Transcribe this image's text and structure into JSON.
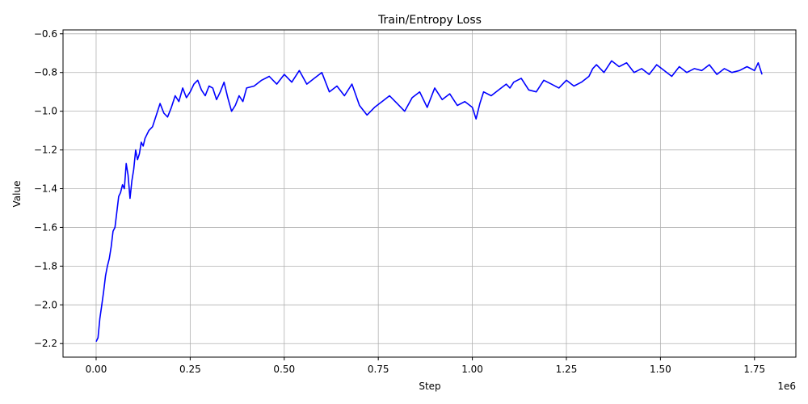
{
  "chart_data": {
    "type": "line",
    "title": "Train/Entropy Loss",
    "xlabel": "Step",
    "ylabel": "Value",
    "x_offset_label": "1e6",
    "xlim": [
      -0.088,
      1.86
    ],
    "ylim": [
      -2.27,
      -0.58
    ],
    "x_ticks": [
      0.0,
      0.25,
      0.5,
      0.75,
      1.0,
      1.25,
      1.5,
      1.75
    ],
    "x_tick_labels": [
      "0.00",
      "0.25",
      "0.50",
      "0.75",
      "1.00",
      "1.25",
      "1.50",
      "1.75"
    ],
    "y_ticks": [
      -2.2,
      -2.0,
      -1.8,
      -1.6,
      -1.4,
      -1.2,
      -1.0,
      -0.8,
      -0.6
    ],
    "y_tick_labels": [
      "−2.2",
      "−2.0",
      "−1.8",
      "−1.6",
      "−1.4",
      "−1.2",
      "−1.0",
      "−0.8",
      "−0.6"
    ],
    "grid": true,
    "line_color": "#0000ff",
    "series": [
      {
        "x": [
          0.0,
          0.005,
          0.01,
          0.015,
          0.02,
          0.025,
          0.03,
          0.035,
          0.04,
          0.045,
          0.05,
          0.055,
          0.06,
          0.065,
          0.07,
          0.075,
          0.08,
          0.085,
          0.09,
          0.095,
          0.1,
          0.105,
          0.11,
          0.115,
          0.12,
          0.125,
          0.13,
          0.14,
          0.15,
          0.16,
          0.17,
          0.18,
          0.19,
          0.2,
          0.21,
          0.22,
          0.23,
          0.24,
          0.25,
          0.26,
          0.27,
          0.28,
          0.29,
          0.3,
          0.31,
          0.32,
          0.33,
          0.34,
          0.35,
          0.36,
          0.37,
          0.38,
          0.39,
          0.4,
          0.42,
          0.44,
          0.46,
          0.48,
          0.5,
          0.52,
          0.54,
          0.56,
          0.58,
          0.6,
          0.62,
          0.64,
          0.66,
          0.68,
          0.7,
          0.72,
          0.74,
          0.76,
          0.78,
          0.8,
          0.82,
          0.84,
          0.86,
          0.88,
          0.9,
          0.92,
          0.94,
          0.96,
          0.98,
          1.0,
          1.01,
          1.02,
          1.03,
          1.05,
          1.07,
          1.09,
          1.1,
          1.11,
          1.13,
          1.15,
          1.17,
          1.19,
          1.21,
          1.23,
          1.25,
          1.27,
          1.29,
          1.31,
          1.32,
          1.33,
          1.35,
          1.37,
          1.39,
          1.41,
          1.43,
          1.45,
          1.47,
          1.49,
          1.51,
          1.53,
          1.55,
          1.57,
          1.59,
          1.61,
          1.63,
          1.65,
          1.67,
          1.69,
          1.71,
          1.73,
          1.75,
          1.76,
          1.77
        ],
        "values": [
          -2.19,
          -2.17,
          -2.07,
          -2.0,
          -1.93,
          -1.85,
          -1.8,
          -1.76,
          -1.7,
          -1.62,
          -1.6,
          -1.52,
          -1.44,
          -1.42,
          -1.38,
          -1.4,
          -1.27,
          -1.33,
          -1.45,
          -1.36,
          -1.3,
          -1.2,
          -1.25,
          -1.22,
          -1.16,
          -1.18,
          -1.14,
          -1.1,
          -1.08,
          -1.02,
          -0.96,
          -1.01,
          -1.03,
          -0.98,
          -0.92,
          -0.95,
          -0.88,
          -0.93,
          -0.9,
          -0.86,
          -0.84,
          -0.89,
          -0.92,
          -0.87,
          -0.88,
          -0.94,
          -0.9,
          -0.85,
          -0.93,
          -1.0,
          -0.97,
          -0.92,
          -0.95,
          -0.88,
          -0.87,
          -0.84,
          -0.82,
          -0.86,
          -0.81,
          -0.85,
          -0.79,
          -0.86,
          -0.83,
          -0.8,
          -0.9,
          -0.87,
          -0.92,
          -0.86,
          -0.97,
          -1.02,
          -0.98,
          -0.95,
          -0.92,
          -0.96,
          -1.0,
          -0.93,
          -0.9,
          -0.98,
          -0.88,
          -0.94,
          -0.91,
          -0.97,
          -0.95,
          -0.98,
          -1.04,
          -0.96,
          -0.9,
          -0.92,
          -0.89,
          -0.86,
          -0.88,
          -0.85,
          -0.83,
          -0.89,
          -0.9,
          -0.84,
          -0.86,
          -0.88,
          -0.84,
          -0.87,
          -0.85,
          -0.82,
          -0.78,
          -0.76,
          -0.8,
          -0.74,
          -0.77,
          -0.75,
          -0.8,
          -0.78,
          -0.81,
          -0.76,
          -0.79,
          -0.82,
          -0.77,
          -0.8,
          -0.78,
          -0.79,
          -0.76,
          -0.81,
          -0.78,
          -0.8,
          -0.79,
          -0.77,
          -0.79,
          -0.75,
          -0.81
        ]
      }
    ]
  }
}
